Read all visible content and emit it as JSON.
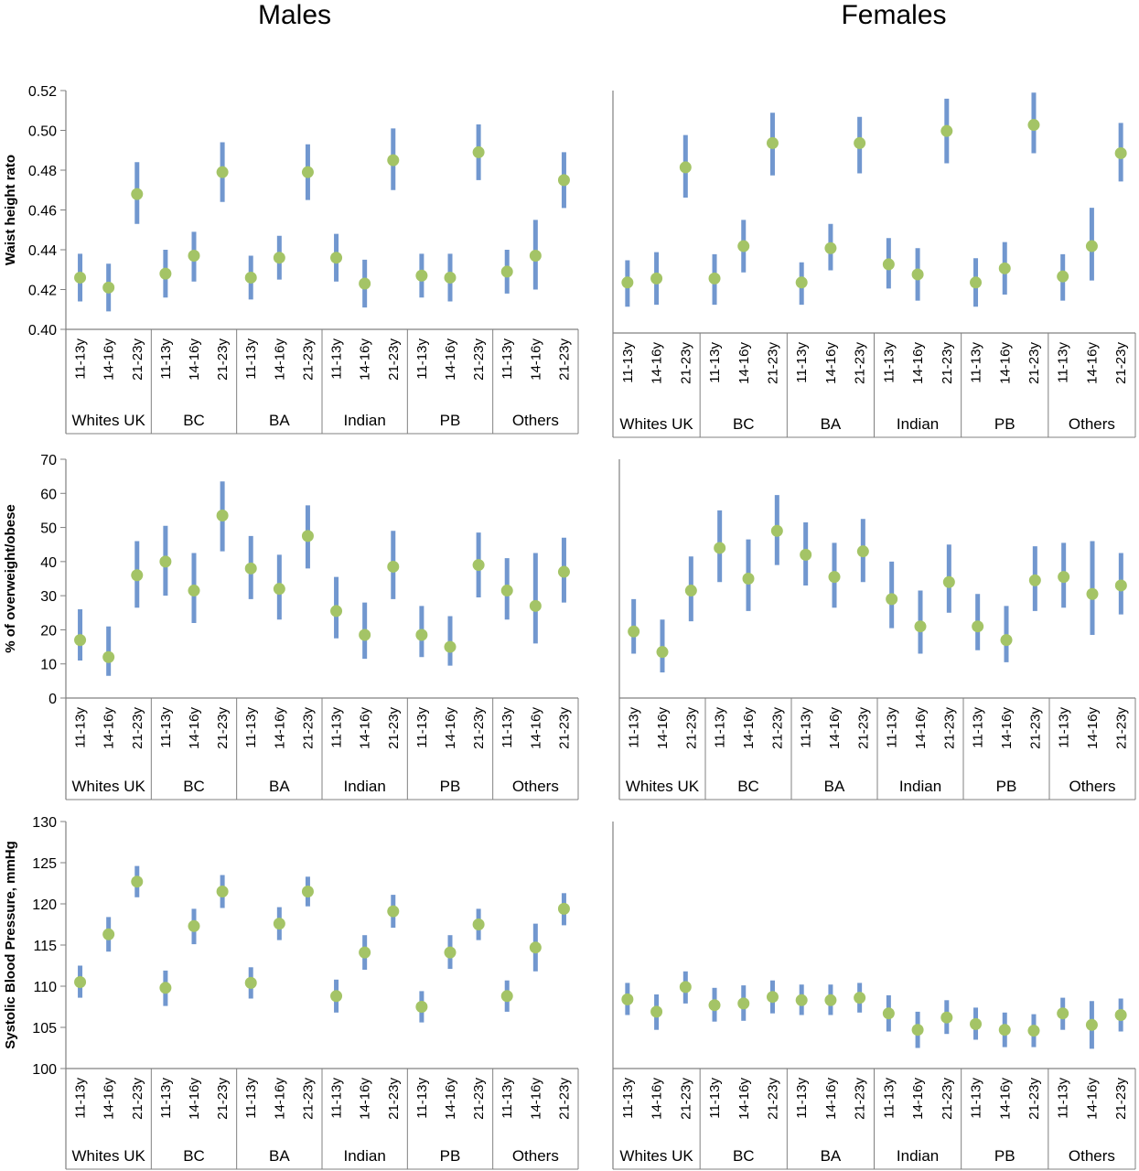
{
  "columns": {
    "left": "Males",
    "right": "Females"
  },
  "colors": {
    "error_bar": "#7197cf",
    "point": "#a4c466",
    "axis": "#808080"
  },
  "chart_data": [
    {
      "type": "scatter",
      "sex": "Males",
      "ylabel": "Waist height rato",
      "ylim": [
        0.4,
        0.52
      ],
      "yticks": [
        "0.40",
        "0.42",
        "0.44",
        "0.46",
        "0.48",
        "0.50",
        "0.52"
      ],
      "groups": [
        "Whites UK",
        "BC",
        "BA",
        "Indian",
        "PB",
        "Others"
      ],
      "categories": [
        "11-13y",
        "14-16y",
        "21-23y"
      ],
      "values": [
        [
          0.426,
          0.421,
          0.468
        ],
        [
          0.428,
          0.437,
          0.479
        ],
        [
          0.426,
          0.436,
          0.479
        ],
        [
          0.436,
          0.423,
          0.485
        ],
        [
          0.427,
          0.426,
          0.489
        ],
        [
          0.429,
          0.437,
          0.475
        ]
      ],
      "ci": [
        [
          [
            0.414,
            0.438
          ],
          [
            0.409,
            0.433
          ],
          [
            0.453,
            0.484
          ]
        ],
        [
          [
            0.416,
            0.44
          ],
          [
            0.424,
            0.449
          ],
          [
            0.464,
            0.494
          ]
        ],
        [
          [
            0.415,
            0.437
          ],
          [
            0.425,
            0.447
          ],
          [
            0.465,
            0.493
          ]
        ],
        [
          [
            0.424,
            0.448
          ],
          [
            0.411,
            0.435
          ],
          [
            0.47,
            0.501
          ]
        ],
        [
          [
            0.416,
            0.438
          ],
          [
            0.414,
            0.438
          ],
          [
            0.475,
            0.503
          ]
        ],
        [
          [
            0.418,
            0.44
          ],
          [
            0.42,
            0.455
          ],
          [
            0.461,
            0.489
          ]
        ]
      ]
    },
    {
      "type": "scatter",
      "sex": "Females",
      "ylabel": "",
      "ylim": [
        0.4,
        0.52
      ],
      "yticks": [],
      "groups": [
        "Whites UK",
        "BC",
        "BA",
        "Indian",
        "PB",
        "Others"
      ],
      "categories": [
        "11-13y",
        "14-16y",
        "21-23y"
      ],
      "values": [
        [
          0.425,
          0.427,
          0.482
        ],
        [
          0.427,
          0.443,
          0.494
        ],
        [
          0.425,
          0.442,
          0.494
        ],
        [
          0.434,
          0.429,
          0.5
        ],
        [
          0.425,
          0.432,
          0.503
        ],
        [
          0.428,
          0.443,
          0.489
        ]
      ],
      "ci": [
        [
          [
            0.413,
            0.436
          ],
          [
            0.414,
            0.44
          ],
          [
            0.467,
            0.498
          ]
        ],
        [
          [
            0.414,
            0.439
          ],
          [
            0.43,
            0.456
          ],
          [
            0.478,
            0.509
          ]
        ],
        [
          [
            0.414,
            0.435
          ],
          [
            0.431,
            0.454
          ],
          [
            0.479,
            0.507
          ]
        ],
        [
          [
            0.422,
            0.447
          ],
          [
            0.416,
            0.442
          ],
          [
            0.484,
            0.516
          ]
        ],
        [
          [
            0.413,
            0.437
          ],
          [
            0.419,
            0.445
          ],
          [
            0.489,
            0.519
          ]
        ],
        [
          [
            0.416,
            0.439
          ],
          [
            0.426,
            0.462
          ],
          [
            0.475,
            0.504
          ]
        ]
      ]
    },
    {
      "type": "scatter",
      "sex": "Males",
      "ylabel": "% of overweight/obese",
      "ylim": [
        0,
        70
      ],
      "yticks": [
        "0",
        "10",
        "20",
        "30",
        "40",
        "50",
        "60",
        "70"
      ],
      "groups": [
        "Whites UK",
        "BC",
        "BA",
        "Indian",
        "PB",
        "Others"
      ],
      "categories": [
        "11-13y",
        "14-16y",
        "21-23y"
      ],
      "values": [
        [
          17,
          12,
          36
        ],
        [
          40,
          31.5,
          53.5
        ],
        [
          38,
          32,
          47.5
        ],
        [
          25.5,
          18.5,
          38.5
        ],
        [
          18.5,
          15,
          39
        ],
        [
          31.5,
          27,
          37
        ]
      ],
      "ci": [
        [
          [
            11,
            26
          ],
          [
            6.5,
            21
          ],
          [
            26.5,
            46
          ]
        ],
        [
          [
            30,
            50.5
          ],
          [
            22,
            42.5
          ],
          [
            43,
            63.5
          ]
        ],
        [
          [
            29,
            47.5
          ],
          [
            23,
            42
          ],
          [
            38,
            56.5
          ]
        ],
        [
          [
            17.5,
            35.5
          ],
          [
            11.5,
            28
          ],
          [
            29,
            49
          ]
        ],
        [
          [
            12,
            27
          ],
          [
            9.5,
            24
          ],
          [
            29.5,
            48.5
          ]
        ],
        [
          [
            23,
            41
          ],
          [
            16,
            42.5
          ],
          [
            28,
            47
          ]
        ]
      ]
    },
    {
      "type": "scatter",
      "sex": "Females",
      "ylabel": "",
      "ylim": [
        0,
        70
      ],
      "yticks": [],
      "groups": [
        "Whites UK",
        "BC",
        "BA",
        "Indian",
        "PB",
        "Others"
      ],
      "categories": [
        "11-13y",
        "14-16y",
        "21-23y"
      ],
      "values": [
        [
          19.5,
          13.5,
          31.5
        ],
        [
          44,
          35,
          49
        ],
        [
          42,
          35.5,
          43
        ],
        [
          29,
          21,
          34
        ],
        [
          21,
          17,
          34.5
        ],
        [
          35.5,
          30.5,
          33
        ]
      ],
      "ci": [
        [
          [
            13,
            29
          ],
          [
            7.5,
            23
          ],
          [
            22.5,
            41.5
          ]
        ],
        [
          [
            34,
            55
          ],
          [
            25.5,
            46.5
          ],
          [
            39,
            59.5
          ]
        ],
        [
          [
            33,
            51.5
          ],
          [
            26.5,
            45.5
          ],
          [
            34,
            52.5
          ]
        ],
        [
          [
            20.5,
            40
          ],
          [
            13,
            31.5
          ],
          [
            25,
            45
          ]
        ],
        [
          [
            14,
            30.5
          ],
          [
            10.5,
            27
          ],
          [
            25.5,
            44.5
          ]
        ],
        [
          [
            26.5,
            45.5
          ],
          [
            18.5,
            46
          ],
          [
            24.5,
            42.5
          ]
        ]
      ]
    },
    {
      "type": "scatter",
      "sex": "Males",
      "ylabel": "Systolic Blood Pressure, mmHg",
      "ylim": [
        100,
        130
      ],
      "yticks": [
        "100",
        "105",
        "110",
        "115",
        "120",
        "125",
        "130"
      ],
      "groups": [
        "Whites UK",
        "BC",
        "BA",
        "Indian",
        "PB",
        "Others"
      ],
      "categories": [
        "11-13y",
        "14-16y",
        "21-23y"
      ],
      "values": [
        [
          110.5,
          116.3,
          122.7
        ],
        [
          109.8,
          117.3,
          121.5
        ],
        [
          110.4,
          117.6,
          121.5
        ],
        [
          108.8,
          114.1,
          119.1
        ],
        [
          107.5,
          114.1,
          117.5
        ],
        [
          108.8,
          114.7,
          119.4
        ]
      ],
      "ci": [
        [
          [
            108.6,
            112.5
          ],
          [
            114.2,
            118.4
          ],
          [
            120.8,
            124.6
          ]
        ],
        [
          [
            107.6,
            111.9
          ],
          [
            115.1,
            119.4
          ],
          [
            119.5,
            123.5
          ]
        ],
        [
          [
            108.5,
            112.3
          ],
          [
            115.6,
            119.6
          ],
          [
            119.7,
            123.3
          ]
        ],
        [
          [
            106.8,
            110.8
          ],
          [
            112,
            116.2
          ],
          [
            117.1,
            121.1
          ]
        ],
        [
          [
            105.6,
            109.4
          ],
          [
            112.1,
            116.2
          ],
          [
            115.6,
            119.4
          ]
        ],
        [
          [
            106.9,
            110.7
          ],
          [
            111.8,
            117.6
          ],
          [
            117.4,
            121.3
          ]
        ]
      ]
    },
    {
      "type": "scatter",
      "sex": "Females",
      "ylabel": "",
      "ylim": [
        100,
        130
      ],
      "yticks": [],
      "groups": [
        "Whites UK",
        "BC",
        "BA",
        "Indian",
        "PB",
        "Others"
      ],
      "categories": [
        "11-13y",
        "14-16y",
        "21-23y"
      ],
      "values": [
        [
          108.4,
          106.9,
          109.9
        ],
        [
          107.7,
          107.9,
          108.7
        ],
        [
          108.3,
          108.3,
          108.6
        ],
        [
          106.7,
          104.7,
          106.2
        ],
        [
          105.4,
          104.7,
          104.6
        ],
        [
          106.7,
          105.3,
          106.5
        ]
      ],
      "ci": [
        [
          [
            106.5,
            110.4
          ],
          [
            104.7,
            109
          ],
          [
            107.9,
            111.8
          ]
        ],
        [
          [
            105.7,
            109.8
          ],
          [
            105.8,
            110.1
          ],
          [
            106.7,
            110.7
          ]
        ],
        [
          [
            106.5,
            110.2
          ],
          [
            106.5,
            110.2
          ],
          [
            106.8,
            110.4
          ]
        ],
        [
          [
            104.5,
            108.9
          ],
          [
            102.5,
            106.9
          ],
          [
            104.2,
            108.3
          ]
        ],
        [
          [
            103.5,
            107.4
          ],
          [
            102.6,
            106.8
          ],
          [
            102.6,
            106.6
          ]
        ],
        [
          [
            104.7,
            108.6
          ],
          [
            102.4,
            108.2
          ],
          [
            104.5,
            108.5
          ]
        ]
      ]
    }
  ]
}
